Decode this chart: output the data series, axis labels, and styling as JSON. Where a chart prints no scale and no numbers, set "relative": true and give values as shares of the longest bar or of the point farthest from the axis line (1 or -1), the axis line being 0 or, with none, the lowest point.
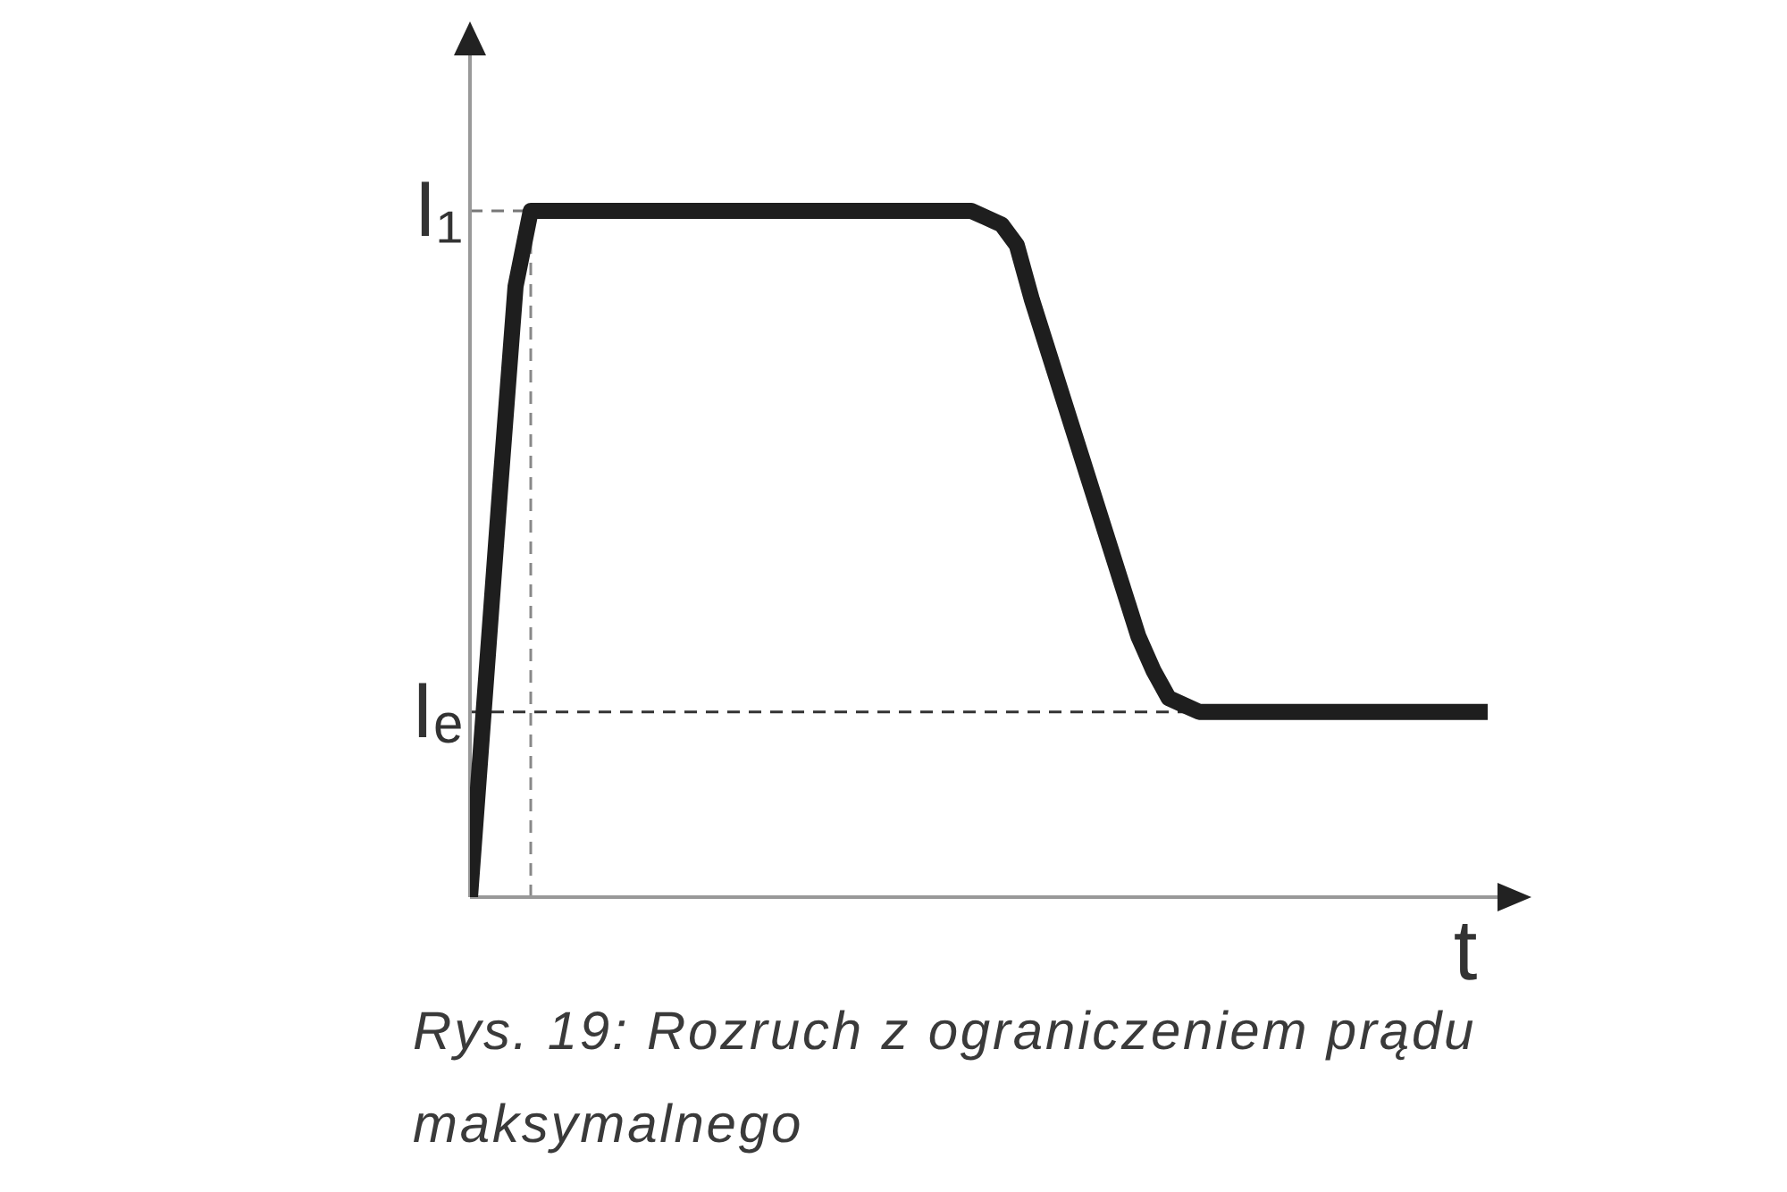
{
  "chart_data": {
    "type": "line",
    "relative": true,
    "xlabel": "t",
    "categories": [
      null,
      null,
      null,
      null,
      null,
      null,
      null,
      null,
      null,
      null,
      null,
      null,
      null,
      null,
      null,
      null,
      null,
      null,
      null,
      null,
      null,
      null,
      null,
      null,
      null,
      null,
      null,
      null,
      null,
      null,
      null,
      null,
      null,
      null,
      null,
      null,
      null,
      null,
      null,
      null,
      null,
      null,
      null,
      null,
      null,
      null,
      null,
      null,
      null,
      null,
      null,
      null,
      null,
      null,
      null,
      null,
      null,
      null,
      null,
      null,
      null,
      null,
      null,
      null,
      null,
      null,
      null,
      null
    ],
    "values": [
      0,
      0.3,
      0.6,
      0.89,
      1,
      1,
      1,
      1,
      1,
      1,
      1,
      1,
      1,
      1,
      1,
      1,
      1,
      1,
      1,
      1,
      1,
      1,
      1,
      1,
      1,
      1,
      1,
      1,
      1,
      1,
      1,
      1,
      1,
      1,
      0.99,
      0.98,
      0.95,
      0.87,
      0.8,
      0.73,
      0.66,
      0.59,
      0.52,
      0.45,
      0.38,
      0.33,
      0.29,
      0.28,
      0.27,
      0.27,
      0.27,
      0.27,
      0.27,
      0.27,
      0.27,
      0.27,
      0.27,
      0.27,
      0.27,
      0.27,
      0.27,
      0.27,
      0.27,
      0.27,
      0.27,
      0.27,
      0.27,
      0.27
    ],
    "color": "#1e1e1e",
    "marker": "none",
    "line_style": "solid",
    "ref_lines": [
      {
        "axis": "y",
        "value": 1,
        "label": "I₁",
        "color": "#777777",
        "line_style": "dashed"
      },
      {
        "axis": "y",
        "value": 0.27,
        "label": "Iₑ",
        "color": "#333333",
        "line_style": "dashed"
      }
    ],
    "annotations": [
      "Rys. 19: Rozruch z ograniczeniem prądu maksymalnego"
    ]
  }
}
